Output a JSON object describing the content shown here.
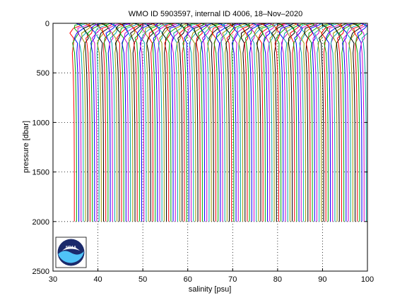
{
  "chart_data": {
    "type": "line",
    "title": "WMO ID 5903597, internal ID 4006, 18–Nov–2020",
    "xlabel": "salinity [psu]",
    "ylabel": "pressure [dbar]",
    "xlim": [
      30,
      100
    ],
    "ylim": [
      0,
      2500
    ],
    "y_reversed": true,
    "grid": true,
    "x_ticks": [
      30,
      40,
      50,
      60,
      70,
      80,
      90,
      100
    ],
    "y_ticks": [
      0,
      500,
      1000,
      1500,
      2000,
      2500
    ],
    "profile_stack": {
      "first_profile_offset_psu": 0,
      "offset_step_psu": 0.5,
      "profile_count": 131,
      "pressure_max": 2000,
      "colors": [
        "#ff0000",
        "#00aa00",
        "#0000ff",
        "#cc00cc",
        "#00aaaa",
        "#999900",
        "#000000"
      ],
      "base_profile": {
        "pressure": [
          0,
          20,
          50,
          100,
          150,
          200,
          300,
          400,
          500,
          700,
          1000,
          1500,
          2000
        ],
        "salinity": [
          35.3,
          35.2,
          34.8,
          34.5,
          34.3,
          34.25,
          34.3,
          34.4,
          34.5,
          34.6,
          34.7,
          34.75,
          34.75
        ]
      }
    },
    "logo": {
      "label": "NOAA",
      "colors": {
        "navy": "#1b2a6b",
        "blue": "#1e88e5",
        "light": "#4fc3f7"
      }
    }
  }
}
